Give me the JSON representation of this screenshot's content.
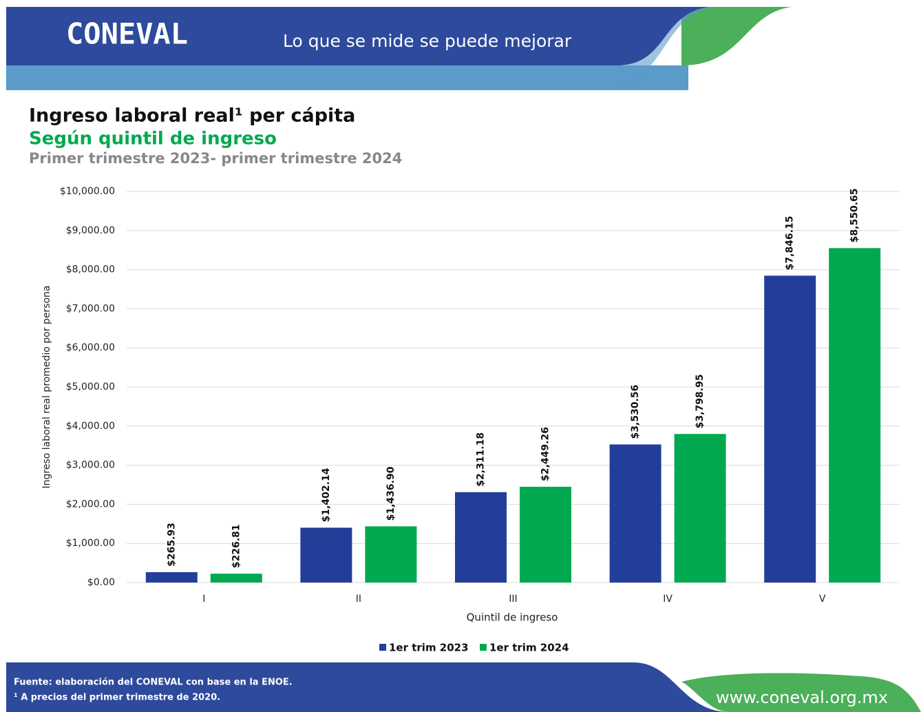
{
  "header": {
    "logo": "CONEVAL",
    "tagline": "Lo que se mide se puede mejorar"
  },
  "chart_data": {
    "type": "bar",
    "title": "Ingreso laboral real¹ per cápita",
    "subtitle": "Según quintil de ingreso",
    "period": "Primer trimestre 2023- primer trimestre 2024",
    "x_label": "Quintil de ingreso",
    "y_label": "Ingreso laboral real promedio por persona",
    "categories": [
      "I",
      "II",
      "III",
      "IV",
      "V"
    ],
    "series": [
      {
        "name": "1er trim 2023",
        "color": "#233e99",
        "values": [
          265.93,
          1402.14,
          2311.18,
          3530.56,
          7846.15
        ],
        "value_labels": [
          "$265.93",
          "$1,402.14",
          "$2,311.18",
          "$3,530.56",
          "$7,846.15"
        ]
      },
      {
        "name": "1er trim 2024",
        "color": "#00a94f",
        "values": [
          226.81,
          1436.9,
          2449.26,
          3798.95,
          8550.65
        ],
        "value_labels": [
          "$226.81",
          "$1,436.90",
          "$2,449.26",
          "$3,798.95",
          "$8,550.65"
        ]
      }
    ],
    "ylim": [
      0,
      10000
    ],
    "yticks": [
      {
        "value": 0,
        "label": "$0.00"
      },
      {
        "value": 1000,
        "label": "$1,000.00"
      },
      {
        "value": 2000,
        "label": "$2,000.00"
      },
      {
        "value": 3000,
        "label": "$3,000.00"
      },
      {
        "value": 4000,
        "label": "$4,000.00"
      },
      {
        "value": 5000,
        "label": "$5,000.00"
      },
      {
        "value": 6000,
        "label": "$6,000.00"
      },
      {
        "value": 7000,
        "label": "$7,000.00"
      },
      {
        "value": 8000,
        "label": "$8,000.00"
      },
      {
        "value": 9000,
        "label": "$9,000.00"
      },
      {
        "value": 10000,
        "label": "$10,000.00"
      }
    ],
    "grid": true,
    "legend": "bottom"
  },
  "footer": {
    "source": "Fuente: elaboración del CONEVAL con base en la ENOE.",
    "note": "¹ A precios del primer trimestre de 2020.",
    "url": "www.coneval.org.mx"
  }
}
